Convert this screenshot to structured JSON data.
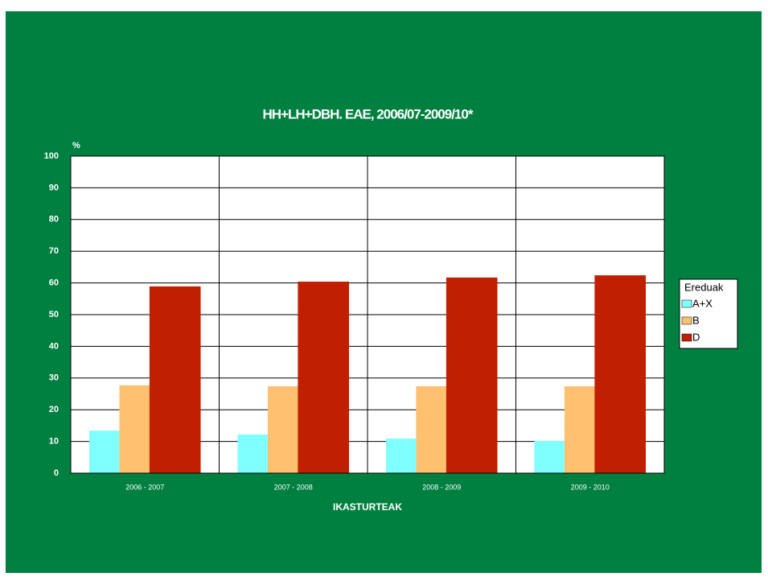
{
  "chart_data": {
    "type": "bar",
    "title": "HH+LH+DBH. EAE, 2006/07-2009/10*",
    "y_label": "%",
    "x_label": "IKASTURTEAK",
    "legend_title": "Ereduak",
    "categories": [
      "2006 - 2007",
      "2007 - 2008",
      "2008 - 2009",
      "2009 - 2010"
    ],
    "series": [
      {
        "name": "A+X",
        "color": "#80ffff",
        "values": [
          13.4,
          12.2,
          10.9,
          10.2
        ]
      },
      {
        "name": "B",
        "color": "#ffc070",
        "values": [
          27.7,
          27.4,
          27.4,
          27.4
        ]
      },
      {
        "name": "D",
        "color": "#c02000",
        "values": [
          58.9,
          60.4,
          61.7,
          62.4
        ]
      }
    ],
    "ylim": [
      0,
      100
    ],
    "yticks": [
      0,
      10,
      20,
      30,
      40,
      50,
      60,
      70,
      80,
      90,
      100
    ],
    "grid": true
  }
}
